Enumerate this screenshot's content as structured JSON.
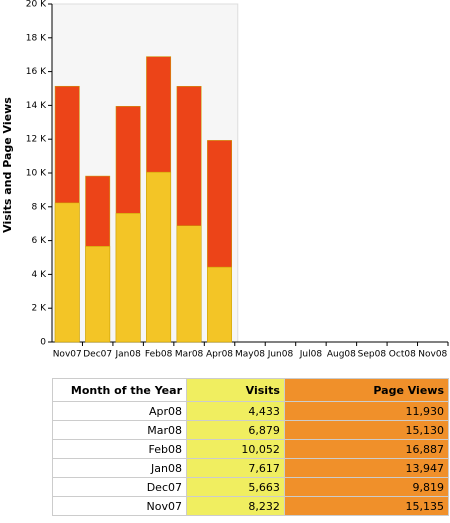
{
  "chart_data": {
    "type": "bar",
    "y_label": "Visits and Page Views",
    "categories": [
      "Nov07",
      "Dec07",
      "Jan08",
      "Feb08",
      "Mar08",
      "Apr08",
      "May08",
      "Jun08",
      "Jul08",
      "Aug08",
      "Sep08",
      "Oct08",
      "Nov08"
    ],
    "series": [
      {
        "name": "Page Views",
        "color": "#ec4418",
        "values": [
          15135,
          9819,
          13947,
          16887,
          15130,
          11930,
          null,
          null,
          null,
          null,
          null,
          null,
          null
        ]
      },
      {
        "name": "Visits",
        "color": "#f3c526",
        "values": [
          8232,
          5663,
          7617,
          10052,
          6879,
          4433,
          null,
          null,
          null,
          null,
          null,
          null,
          null
        ]
      }
    ],
    "ylim": [
      0,
      20000
    ],
    "yticks": [
      0,
      {
        "value": 2000,
        "label": "2 K"
      },
      {
        "value": 4000,
        "label": "4 K"
      },
      {
        "value": 6000,
        "label": "6 K"
      },
      {
        "value": 8000,
        "label": "8 K"
      },
      {
        "value": 10000,
        "label": "10 K"
      },
      {
        "value": 12000,
        "label": "12 K"
      },
      {
        "value": 14000,
        "label": "14 K"
      },
      {
        "value": 16000,
        "label": "16 K"
      },
      {
        "value": 18000,
        "label": "18 K"
      },
      {
        "value": 20000,
        "label": "20 K"
      }
    ]
  },
  "table": {
    "header": [
      "Month of the Year",
      "Visits",
      "Page Views"
    ],
    "rows": [
      [
        "Apr08",
        "4,433",
        "11,930"
      ],
      [
        "Mar08",
        "6,879",
        "15,130"
      ],
      [
        "Feb08",
        "10,052",
        "16,887"
      ],
      [
        "Jan08",
        "7,617",
        "13,947"
      ],
      [
        "Dec07",
        "5,663",
        "9,819"
      ],
      [
        "Nov07",
        "8,232",
        "15,135"
      ]
    ]
  }
}
